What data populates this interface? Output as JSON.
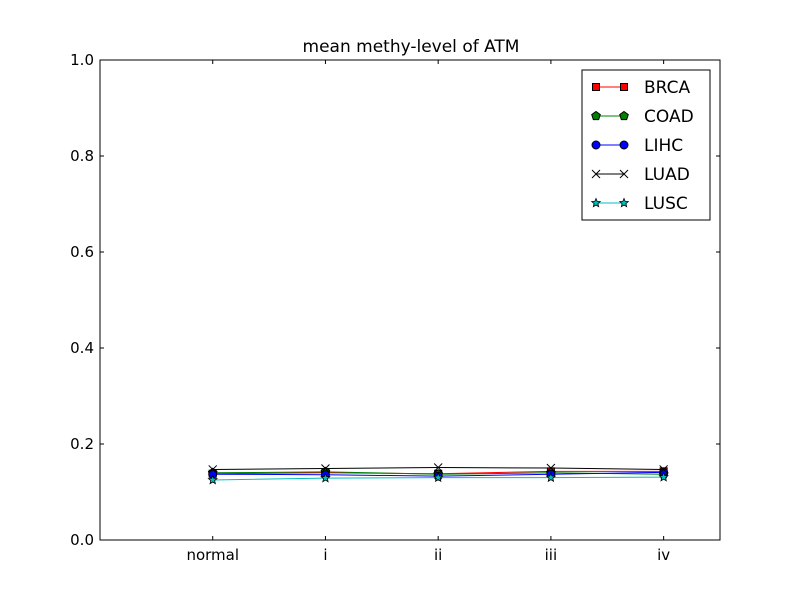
{
  "chart_data": {
    "type": "line",
    "title": "mean methy-level of ATM",
    "xlabel": "",
    "ylabel": "",
    "categories": [
      "normal",
      "i",
      "ii",
      "iii",
      "iv"
    ],
    "xlim": [
      -1,
      4.5
    ],
    "ylim": [
      0.0,
      1.0
    ],
    "yticks": [
      "0.0",
      "0.2",
      "0.4",
      "0.6",
      "0.8",
      "1.0"
    ],
    "grid": false,
    "legend_position": "top-right",
    "series": [
      {
        "name": "BRCA",
        "color": "#ff0000",
        "marker": "square",
        "values": [
          0.138,
          0.14,
          0.138,
          0.143,
          0.143
        ]
      },
      {
        "name": "COAD",
        "color": "#008000",
        "marker": "pentagon",
        "values": [
          0.14,
          0.142,
          0.137,
          0.14,
          0.137
        ]
      },
      {
        "name": "LIHC",
        "color": "#0000ff",
        "marker": "circle",
        "values": [
          0.137,
          0.136,
          0.133,
          0.137,
          0.141
        ]
      },
      {
        "name": "LUAD",
        "color": "#000000",
        "marker": "x",
        "values": [
          0.147,
          0.149,
          0.151,
          0.15,
          0.147
        ]
      },
      {
        "name": "LUSC",
        "color": "#00bfbf",
        "marker": "star",
        "values": [
          0.125,
          0.129,
          0.13,
          0.13,
          0.131
        ]
      }
    ]
  }
}
